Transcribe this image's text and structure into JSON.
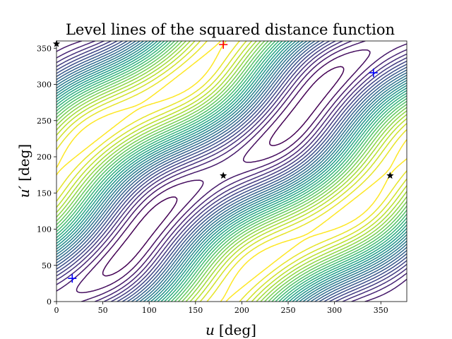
{
  "chart_data": {
    "type": "contour",
    "title": "Level lines of the squared distance function",
    "xlabel": "u [deg]",
    "xlabel_var": "u",
    "xlabel_unit": "[deg]",
    "ylabel": "u′ [deg]",
    "ylabel_var": "u′",
    "ylabel_unit": "[deg]",
    "xlim": [
      0,
      378
    ],
    "ylim": [
      0,
      360
    ],
    "xticks": [
      0,
      50,
      100,
      150,
      200,
      250,
      300,
      350
    ],
    "yticks": [
      0,
      50,
      100,
      150,
      200,
      250,
      300,
      350
    ],
    "grid": false,
    "colormap": "viridis",
    "levels": 30,
    "markers": [
      {
        "kind": "plus",
        "color": "#ff0000",
        "x": 180,
        "y": 355
      },
      {
        "kind": "plus",
        "color": "#0000ff",
        "x": 17,
        "y": 32
      },
      {
        "kind": "plus",
        "color": "#0000ff",
        "x": 342,
        "y": 316
      },
      {
        "kind": "star",
        "color": "#000000",
        "x": 0,
        "y": 356
      },
      {
        "kind": "star",
        "color": "#000000",
        "x": 180,
        "y": 174
      },
      {
        "kind": "star",
        "color": "#000000",
        "x": 360,
        "y": 174
      }
    ]
  }
}
